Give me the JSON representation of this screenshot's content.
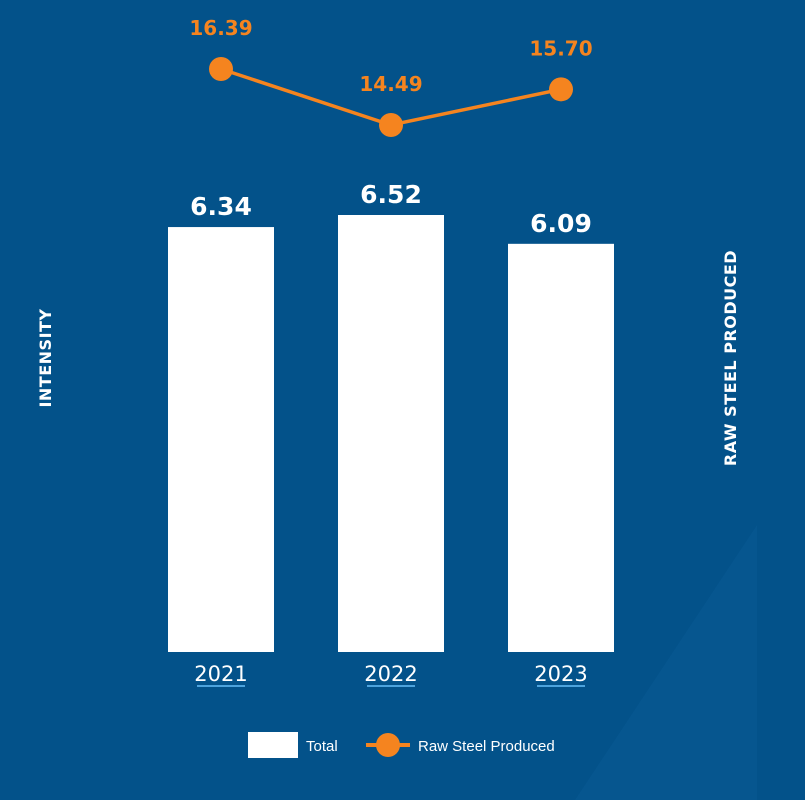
{
  "chart_data": {
    "type": "bar",
    "categories": [
      "2021",
      "2022",
      "2023"
    ],
    "series": [
      {
        "name": "Total",
        "type": "bar",
        "axis": "left",
        "values": [
          6.34,
          6.52,
          6.09
        ],
        "value_labels": [
          "6.34",
          "6.52",
          "6.09"
        ]
      },
      {
        "name": "Raw Steel Produced",
        "type": "line",
        "axis": "right",
        "values": [
          16.39,
          14.49,
          15.7
        ],
        "value_labels": [
          "16.39",
          "14.49",
          "15.70"
        ]
      }
    ],
    "ylabel": "INTENSITY",
    "y2label": "RAW STEEL PRODUCED",
    "ylim": [
      0,
      6.52
    ],
    "y2lim": [
      10,
      20
    ],
    "legend_position": "bottom-center",
    "grid": false
  },
  "colors": {
    "background": "#03528a",
    "bar": "#ffffff",
    "line": "#f5841f",
    "axis_underline": "#4da3dd"
  }
}
